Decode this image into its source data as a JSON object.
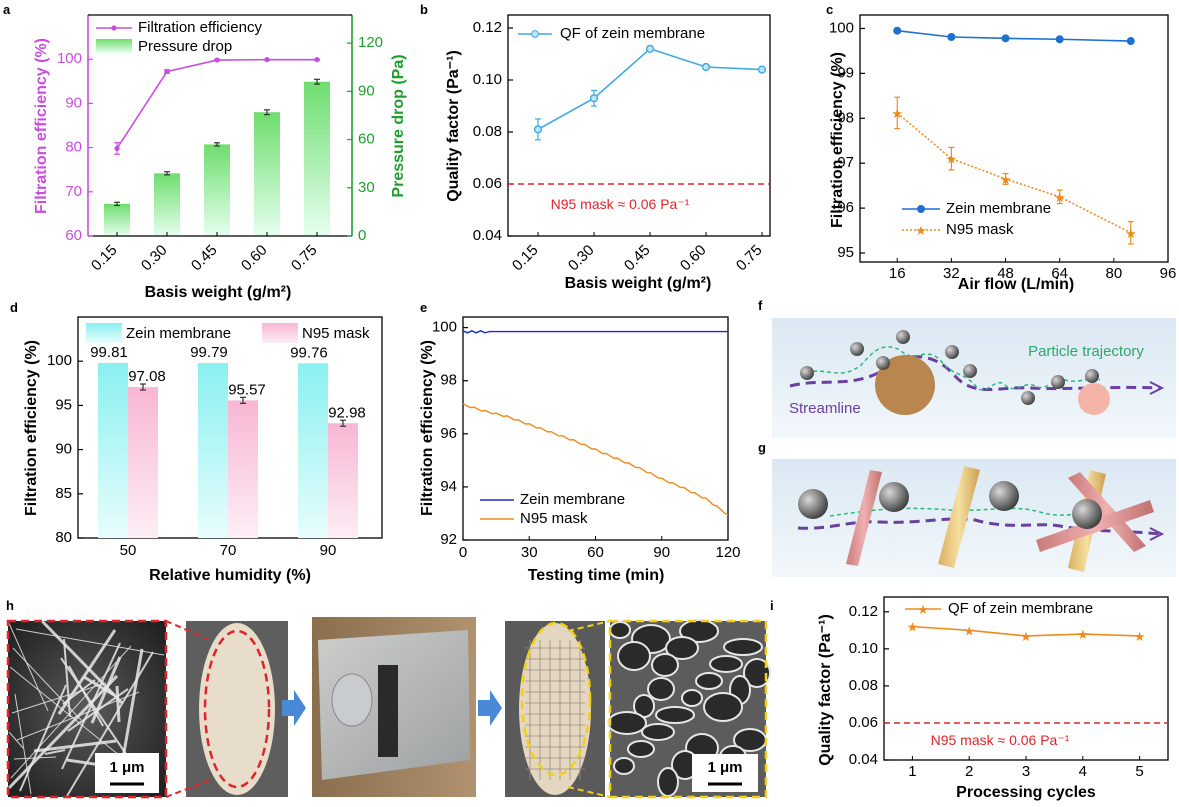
{
  "figure": {
    "panel_letters": [
      "a",
      "b",
      "c",
      "d",
      "e",
      "f",
      "g",
      "h",
      "i"
    ]
  },
  "chart_data": [
    {
      "id": "a",
      "type": "bar+line",
      "xlabel": "Basis weight (g/m²)",
      "ylabel": "Filtration efficiency (%)",
      "y2label": "Pressure drop (Pa)",
      "categories": [
        "0.15",
        "0.30",
        "0.45",
        "0.60",
        "0.75"
      ],
      "line": {
        "name": "Filtration efficiency",
        "values": [
          79.8,
          97.2,
          99.8,
          99.9,
          99.9
        ],
        "errors": [
          1.3,
          0.4,
          0.15,
          0.1,
          0.1
        ],
        "ylim": [
          60,
          110
        ],
        "yticks": [
          "60",
          "70",
          "80",
          "90",
          "100"
        ],
        "color": "#c94ee0"
      },
      "bars": {
        "name": "Pressure drop",
        "values": [
          20,
          39,
          57,
          77,
          96
        ],
        "errors": [
          1,
          1,
          1,
          1.5,
          1.5
        ],
        "ylim": [
          0,
          137.5
        ],
        "yticks": [
          "0",
          "30",
          "60",
          "90",
          "120"
        ]
      },
      "legend": [
        "Filtration efficiency",
        "Pressure drop"
      ]
    },
    {
      "id": "b",
      "type": "line",
      "xlabel": "Basis weight (g/m²)",
      "ylabel": "Quality factor (Pa⁻¹)",
      "categories": [
        "0.15",
        "0.30",
        "0.45",
        "0.60",
        "0.75"
      ],
      "series": [
        {
          "name": "QF of zein membrane",
          "values": [
            0.081,
            0.093,
            0.112,
            0.105,
            0.104
          ],
          "errors": [
            0.004,
            0.003,
            0.0008,
            0.0008,
            0.0008
          ],
          "color": "#3fa9e2"
        }
      ],
      "ylim": [
        0.04,
        0.125
      ],
      "yticks": [
        "0.04",
        "0.06",
        "0.08",
        "0.10",
        "0.12"
      ],
      "reference": {
        "value": 0.06,
        "label": "N95 mask ≈ 0.06 Pa⁻¹"
      },
      "legend": [
        "QF of zein membrane"
      ]
    },
    {
      "id": "c",
      "type": "line",
      "xlabel": "Air flow (L/min)",
      "ylabel": "Filtration efficiency (%)",
      "x": [
        16,
        32,
        48,
        64,
        85
      ],
      "xlim": [
        5,
        96
      ],
      "xticks": [
        "16",
        "32",
        "48",
        "64",
        "80",
        "96"
      ],
      "ylim": [
        94.8,
        100.3
      ],
      "yticks": [
        "95",
        "96",
        "97",
        "98",
        "99",
        "100"
      ],
      "series": [
        {
          "name": "Zein membrane",
          "values": [
            99.95,
            99.81,
            99.78,
            99.76,
            99.72
          ],
          "color": "#1f6fd0"
        },
        {
          "name": "N95 mask",
          "values": [
            98.12,
            97.1,
            96.65,
            96.25,
            95.45
          ],
          "errors": [
            0.35,
            0.25,
            0.12,
            0.15,
            0.25
          ],
          "color": "#f08a1d"
        }
      ]
    },
    {
      "id": "d",
      "type": "bar",
      "xlabel": "Relative humidity (%)",
      "ylabel": "Filtration efficiency (%)",
      "categories": [
        "50",
        "70",
        "90"
      ],
      "ylim": [
        80,
        105
      ],
      "yticks": [
        "80",
        "85",
        "90",
        "95",
        "100"
      ],
      "series": [
        {
          "name": "Zein membrane",
          "values": [
            99.81,
            99.79,
            99.76
          ],
          "labels": [
            "99.81",
            "99.79",
            "99.76"
          ]
        },
        {
          "name": "N95 mask",
          "values": [
            97.08,
            95.57,
            92.98
          ],
          "labels": [
            "97.08",
            "95.57",
            "92.98"
          ]
        }
      ]
    },
    {
      "id": "e",
      "type": "line",
      "xlabel": "Testing time (min)",
      "ylabel": "Filtration efficiency (%)",
      "xlim": [
        0,
        120
      ],
      "xticks": [
        "0",
        "30",
        "60",
        "90",
        "120"
      ],
      "ylim": [
        92,
        100.4
      ],
      "yticks": [
        "92",
        "94",
        "96",
        "98",
        "100"
      ],
      "series": [
        {
          "name": "Zein membrane",
          "x": [
            0,
            120
          ],
          "values": [
            99.85,
            99.85
          ],
          "color": "#1a2fbf"
        },
        {
          "name": "N95 mask",
          "x": [
            0,
            10,
            20,
            30,
            40,
            50,
            60,
            70,
            80,
            90,
            100,
            110,
            120
          ],
          "values": [
            97.1,
            96.85,
            96.65,
            96.35,
            96.05,
            95.75,
            95.4,
            95.05,
            94.7,
            94.3,
            93.95,
            93.55,
            92.95
          ],
          "color": "#f08a1d"
        }
      ]
    },
    {
      "id": "i",
      "type": "line",
      "xlabel": "Processing cycles",
      "ylabel": "Quality factor (Pa⁻¹)",
      "x": [
        1,
        2,
        3,
        4,
        5
      ],
      "xlim": [
        0.5,
        5.5
      ],
      "xticks": [
        "1",
        "2",
        "3",
        "4",
        "5"
      ],
      "ylim": [
        0.04,
        0.128
      ],
      "yticks": [
        "0.04",
        "0.06",
        "0.08",
        "0.10",
        "0.12"
      ],
      "series": [
        {
          "name": "QF of zein membrane",
          "values": [
            0.112,
            0.11,
            0.107,
            0.108,
            0.107
          ],
          "color": "#f08a1d"
        }
      ],
      "reference": {
        "value": 0.06,
        "label": "N95 mask ≈ 0.06 Pa⁻¹"
      }
    }
  ],
  "schematics": {
    "f": {
      "labels": [
        "Particle trajectory",
        "Streamline"
      ]
    },
    "g": {
      "labels": []
    }
  },
  "photos": {
    "h": {
      "scale_bars": [
        "1 μm",
        "1 μm"
      ]
    }
  },
  "colors": {
    "red_ref": "#e0242b",
    "bar_cyan": "#9ef2f2",
    "bar_pink": "#f8bfd8",
    "bar_green": "#7fe08a",
    "purple": "#6b3fa0"
  }
}
